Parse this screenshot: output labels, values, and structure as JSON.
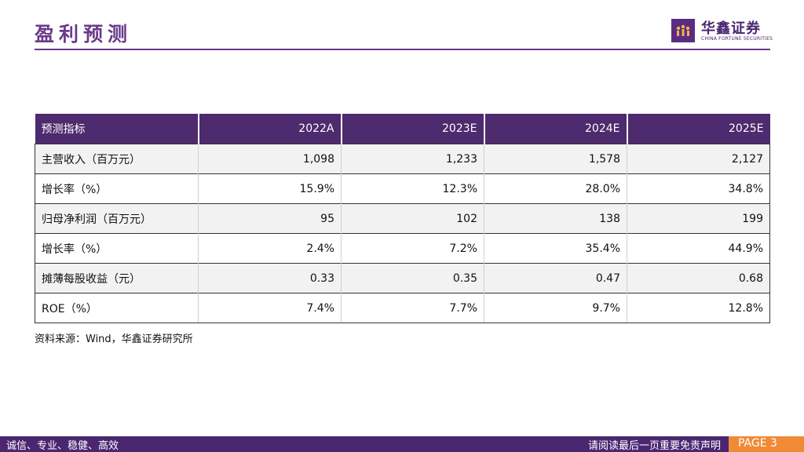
{
  "header": {
    "title": "盈利预测",
    "logo_cn": "华鑫证券",
    "logo_en": "CHINA FORTUNE SECURITIES"
  },
  "table": {
    "headers": [
      "预测指标",
      "2022A",
      "2023E",
      "2024E",
      "2025E"
    ],
    "rows": [
      {
        "label": "主营收入（百万元）",
        "values": [
          "1,098",
          "1,233",
          "1,578",
          "2,127"
        ]
      },
      {
        "label": "增长率（%）",
        "values": [
          "15.9%",
          "12.3%",
          "28.0%",
          "34.8%"
        ]
      },
      {
        "label": "归母净利润（百万元）",
        "values": [
          "95",
          "102",
          "138",
          "199"
        ]
      },
      {
        "label": "增长率（%）",
        "values": [
          "2.4%",
          "7.2%",
          "35.4%",
          "44.9%"
        ]
      },
      {
        "label": "摊薄每股收益（元）",
        "values": [
          "0.33",
          "0.35",
          "0.47",
          "0.68"
        ]
      },
      {
        "label": "ROE（%）",
        "values": [
          "7.4%",
          "7.7%",
          "9.7%",
          "12.8%"
        ]
      }
    ]
  },
  "source": "资料来源：Wind，华鑫证券研究所",
  "footer": {
    "left": "诚信、专业、稳健、高效",
    "right": "请阅读最后一页重要免责声明",
    "page": "PAGE 3"
  },
  "colors": {
    "brand_purple": "#4e2a6e",
    "accent_orange": "#f08a36"
  }
}
